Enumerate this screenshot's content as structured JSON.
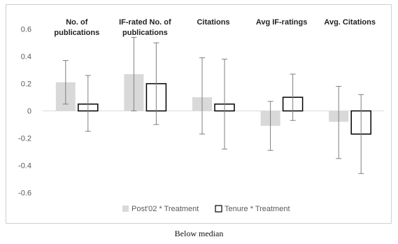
{
  "caption": "Below median",
  "chart_data": {
    "type": "bar",
    "categories": [
      [
        "No. of",
        "publications"
      ],
      [
        "IF-rated No. of",
        "publications"
      ],
      [
        "Citations"
      ],
      [
        "Avg IF-ratings"
      ],
      [
        "Avg. Citations"
      ]
    ],
    "series": [
      {
        "name": "Post'02 * Treatment",
        "color": "#d9d9d9",
        "outline": "none",
        "values": [
          0.21,
          0.27,
          0.1,
          -0.11,
          -0.08
        ],
        "err_low": [
          0.05,
          0.0,
          -0.17,
          -0.29,
          -0.35
        ],
        "err_high": [
          0.37,
          0.54,
          0.39,
          0.07,
          0.18
        ]
      },
      {
        "name": "Tenure * Treatment",
        "color": "#ffffff",
        "outline": "#000000",
        "values": [
          0.05,
          0.2,
          0.05,
          0.1,
          -0.17
        ],
        "err_low": [
          -0.15,
          -0.1,
          -0.28,
          -0.07,
          -0.46
        ],
        "err_high": [
          0.26,
          0.5,
          0.38,
          0.27,
          0.12
        ]
      }
    ],
    "ylim": [
      -0.7,
      0.65
    ],
    "yticks": [
      "0.6",
      "0.4",
      "0.2",
      "0",
      "-0.2",
      "-0.4",
      "-0.6"
    ],
    "ytick_values": [
      0.6,
      0.4,
      0.2,
      0,
      -0.2,
      -0.4,
      -0.6
    ],
    "grid": false,
    "legend_position": "bottom"
  }
}
